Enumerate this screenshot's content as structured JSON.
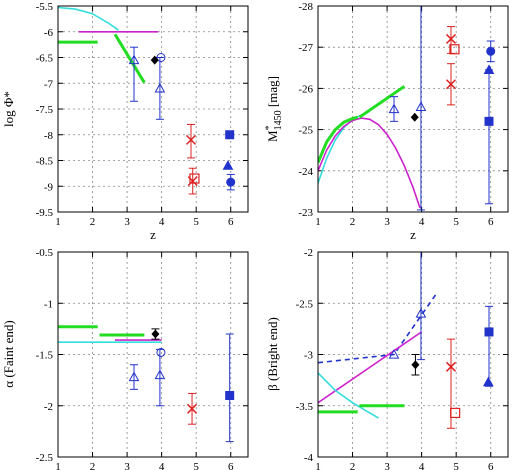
{
  "colors": {
    "green": "#22dd22",
    "magenta": "#cc22cc",
    "cyan": "#33dddd",
    "blue": "#2233cc",
    "red": "#dd2222",
    "black": "#000000",
    "grid": "#888888"
  },
  "chart_data": [
    {
      "id": "phi",
      "type": "scatter",
      "title": "",
      "xlabel": "z",
      "ylabel": "log Φ*",
      "xlim": [
        1,
        6.5
      ],
      "ylim": [
        -9.5,
        -5.5
      ],
      "xticks": [
        1,
        2,
        3,
        4,
        5,
        6
      ],
      "yticks": [
        -9.5,
        -9,
        -8.5,
        -8,
        -7.5,
        -7,
        -6.5,
        -6,
        -5.5
      ],
      "grid": true,
      "curves": [
        {
          "color": "cyan",
          "dash": false,
          "points": [
            [
              1.0,
              -5.53
            ],
            [
              1.5,
              -5.56
            ],
            [
              2.0,
              -5.65
            ],
            [
              2.5,
              -5.85
            ],
            [
              2.75,
              -5.97
            ]
          ]
        },
        {
          "color": "magenta",
          "dash": false,
          "points": [
            [
              1.6,
              -6.0
            ],
            [
              3.9,
              -6.0
            ]
          ]
        },
        {
          "color": "green",
          "dash": false,
          "points": [
            [
              1.0,
              -6.2
            ],
            [
              2.15,
              -6.2
            ]
          ]
        },
        {
          "color": "green",
          "dash": false,
          "points": [
            [
              2.65,
              -6.05
            ],
            [
              3.5,
              -6.99
            ]
          ]
        }
      ],
      "points": [
        {
          "x": 3.2,
          "y": -6.55,
          "yerr": [
            0.8,
            0.25
          ],
          "marker": "tri_open",
          "color": "blue"
        },
        {
          "x": 3.98,
          "y": -6.5,
          "yerr": [
            0.0,
            0.0
          ],
          "marker": "circle_open",
          "color": "blue"
        },
        {
          "x": 3.95,
          "y": -7.1,
          "yerr": [
            0.6,
            0.6
          ],
          "marker": "tri_open",
          "color": "blue"
        },
        {
          "x": 3.8,
          "y": -6.55,
          "yerr": [
            0.0,
            0.0
          ],
          "marker": "diamond",
          "color": "black"
        },
        {
          "x": 4.85,
          "y": -8.1,
          "yerr": [
            0.35,
            0.3
          ],
          "marker": "cross",
          "color": "red"
        },
        {
          "x": 4.9,
          "y": -8.9,
          "yerr": [
            0.25,
            0.25
          ],
          "marker": "cross",
          "color": "red"
        },
        {
          "x": 4.95,
          "y": -8.85,
          "yerr": [
            0.0,
            0.0
          ],
          "marker": "square_open",
          "color": "red"
        },
        {
          "x": 5.97,
          "y": -8.0,
          "yerr": [
            0.0,
            0.0
          ],
          "marker": "square",
          "color": "blue"
        },
        {
          "x": 5.92,
          "y": -8.6,
          "yerr": [
            0.0,
            0.0
          ],
          "marker": "tri",
          "color": "blue"
        },
        {
          "x": 6.0,
          "y": -8.92,
          "yerr": [
            0.15,
            0.15
          ],
          "marker": "circle",
          "color": "blue"
        }
      ]
    },
    {
      "id": "mstar",
      "type": "scatter",
      "title": "",
      "xlabel": "z",
      "ylabel": "M*1450 [mag]",
      "ylabel_main": "M",
      "ylabel_sup": "*",
      "ylabel_sub": "1450",
      "ylabel_rest": " [mag]",
      "xlim": [
        1,
        6.5
      ],
      "ylim": [
        -23,
        -28
      ],
      "xticks": [
        1,
        2,
        3,
        4,
        5,
        6
      ],
      "yticks": [
        -23,
        -24,
        -25,
        -26,
        -27,
        -28
      ],
      "grid": true,
      "curves": [
        {
          "color": "cyan",
          "dash": false,
          "points": [
            [
              1.0,
              -23.7
            ],
            [
              1.25,
              -24.3
            ],
            [
              1.5,
              -24.75
            ],
            [
              1.75,
              -25.05
            ],
            [
              2.0,
              -25.25
            ],
            [
              2.25,
              -25.35
            ],
            [
              2.5,
              -25.45
            ]
          ]
        },
        {
          "color": "magenta",
          "dash": false,
          "points": [
            [
              1.0,
              -24.0
            ],
            [
              1.25,
              -24.5
            ],
            [
              1.5,
              -24.85
            ],
            [
              1.75,
              -25.08
            ],
            [
              2.0,
              -25.22
            ],
            [
              2.25,
              -25.28
            ],
            [
              2.5,
              -25.25
            ],
            [
              2.75,
              -25.12
            ],
            [
              3.0,
              -24.88
            ],
            [
              3.25,
              -24.55
            ],
            [
              3.5,
              -24.12
            ],
            [
              3.75,
              -23.6
            ],
            [
              3.95,
              -23.1
            ]
          ]
        },
        {
          "color": "green",
          "dash": false,
          "points": [
            [
              1.0,
              -24.2
            ],
            [
              1.25,
              -24.7
            ],
            [
              1.5,
              -25.0
            ],
            [
              1.75,
              -25.18
            ],
            [
              2.0,
              -25.27
            ],
            [
              2.15,
              -25.3
            ]
          ]
        },
        {
          "color": "green",
          "dash": false,
          "points": [
            [
              2.2,
              -25.3
            ],
            [
              3.5,
              -26.05
            ]
          ]
        }
      ],
      "points": [
        {
          "x": 3.2,
          "y": -25.5,
          "yerr": [
            0.3,
            0.3
          ],
          "marker": "tri_open",
          "color": "blue"
        },
        {
          "x": 3.98,
          "y": -25.55,
          "yerr": [
            2.55,
            2.5
          ],
          "marker": "tri_open",
          "color": "blue"
        },
        {
          "x": 3.8,
          "y": -25.3,
          "yerr": [
            0.0,
            0.0
          ],
          "marker": "diamond",
          "color": "black"
        },
        {
          "x": 4.85,
          "y": -26.1,
          "yerr": [
            0.5,
            0.5
          ],
          "marker": "cross",
          "color": "red"
        },
        {
          "x": 4.85,
          "y": -27.2,
          "yerr": [
            0.3,
            0.35
          ],
          "marker": "cross",
          "color": "red"
        },
        {
          "x": 4.95,
          "y": -26.95,
          "yerr": [
            0.0,
            0.0
          ],
          "marker": "square_open",
          "color": "red"
        },
        {
          "x": 6.0,
          "y": -26.9,
          "yerr": [
            0.25,
            0.25
          ],
          "marker": "circle",
          "color": "blue"
        },
        {
          "x": 5.95,
          "y": -26.45,
          "yerr": [
            0.0,
            0.0
          ],
          "marker": "tri",
          "color": "blue"
        },
        {
          "x": 5.95,
          "y": -25.2,
          "yerr": [
            1.25,
            2.0
          ],
          "marker": "square",
          "color": "blue"
        }
      ]
    },
    {
      "id": "alpha",
      "type": "scatter",
      "title": "",
      "xlabel": "z",
      "ylabel": "α (Faint end)",
      "xlim": [
        1,
        6.5
      ],
      "ylim": [
        -2.5,
        -0.5
      ],
      "xticks": [
        1,
        2,
        3,
        4,
        5,
        6
      ],
      "yticks": [
        -2.5,
        -2,
        -1.5,
        -1,
        -0.5
      ],
      "grid": true,
      "curves": [
        {
          "color": "cyan",
          "dash": false,
          "points": [
            [
              1.0,
              -1.38
            ],
            [
              4.0,
              -1.38
            ]
          ]
        },
        {
          "color": "magenta",
          "dash": false,
          "points": [
            [
              2.65,
              -1.36
            ],
            [
              4.0,
              -1.36
            ]
          ]
        },
        {
          "color": "green",
          "dash": false,
          "points": [
            [
              1.0,
              -1.23
            ],
            [
              2.15,
              -1.23
            ]
          ]
        },
        {
          "color": "green",
          "dash": false,
          "points": [
            [
              2.2,
              -1.31
            ],
            [
              3.5,
              -1.31
            ]
          ]
        }
      ],
      "points": [
        {
          "x": 3.2,
          "y": -1.72,
          "yerr": [
            0.12,
            0.12
          ],
          "marker": "tri_open",
          "color": "blue"
        },
        {
          "x": 3.98,
          "y": -1.48,
          "yerr": [
            0.0,
            0.0
          ],
          "marker": "circle_open",
          "color": "blue"
        },
        {
          "x": 3.95,
          "y": -1.7,
          "yerr": [
            0.3,
            0.25
          ],
          "marker": "tri_open",
          "color": "blue"
        },
        {
          "x": 3.82,
          "y": -1.3,
          "yerr": [
            0.05,
            0.05
          ],
          "marker": "diamond",
          "color": "black"
        },
        {
          "x": 4.88,
          "y": -2.03,
          "yerr": [
            0.15,
            0.15
          ],
          "marker": "cross",
          "color": "red"
        },
        {
          "x": 5.97,
          "y": -1.9,
          "yerr": [
            0.45,
            0.6
          ],
          "marker": "square",
          "color": "blue"
        }
      ]
    },
    {
      "id": "beta",
      "type": "scatter",
      "title": "",
      "xlabel": "z",
      "ylabel": "β (Bright end)",
      "xlim": [
        1,
        6.5
      ],
      "ylim": [
        -4,
        -2
      ],
      "xticks": [
        1,
        2,
        3,
        4,
        5,
        6
      ],
      "yticks": [
        -4,
        -3.5,
        -3,
        -2.5,
        -2
      ],
      "grid": true,
      "curves": [
        {
          "color": "blue",
          "dash": true,
          "points": [
            [
              1.0,
              -3.08
            ],
            [
              3.2,
              -3.0
            ],
            [
              4.4,
              -2.42
            ]
          ]
        },
        {
          "color": "magenta",
          "dash": false,
          "points": [
            [
              1.0,
              -3.47
            ],
            [
              4.0,
              -2.78
            ]
          ]
        },
        {
          "color": "cyan",
          "dash": false,
          "points": [
            [
              1.0,
              -3.18
            ],
            [
              1.5,
              -3.35
            ],
            [
              2.0,
              -3.47
            ],
            [
              2.4,
              -3.55
            ],
            [
              2.75,
              -3.62
            ]
          ]
        },
        {
          "color": "green",
          "dash": false,
          "points": [
            [
              1.0,
              -3.56
            ],
            [
              2.15,
              -3.56
            ]
          ]
        },
        {
          "color": "green",
          "dash": false,
          "points": [
            [
              2.2,
              -3.5
            ],
            [
              3.5,
              -3.5
            ]
          ]
        }
      ],
      "points": [
        {
          "x": 3.2,
          "y": -3.0,
          "yerr": [
            0.0,
            0.0
          ],
          "marker": "tri_open",
          "color": "blue"
        },
        {
          "x": 3.98,
          "y": -2.6,
          "yerr": [
            0.45,
            1.3
          ],
          "marker": "tri_open",
          "color": "blue"
        },
        {
          "x": 3.82,
          "y": -3.1,
          "yerr": [
            0.1,
            0.1
          ],
          "marker": "diamond",
          "color": "black"
        },
        {
          "x": 4.85,
          "y": -3.12,
          "yerr": [
            0.6,
            0.27
          ],
          "marker": "cross",
          "color": "red"
        },
        {
          "x": 4.97,
          "y": -3.57,
          "yerr": [
            0.0,
            0.0
          ],
          "marker": "square_open",
          "color": "red"
        },
        {
          "x": 5.95,
          "y": -2.78,
          "yerr": [
            0.53,
            0.25
          ],
          "marker": "square",
          "color": "blue"
        },
        {
          "x": 5.93,
          "y": -3.27,
          "yerr": [
            0.0,
            0.0
          ],
          "marker": "tri",
          "color": "blue"
        }
      ]
    }
  ]
}
